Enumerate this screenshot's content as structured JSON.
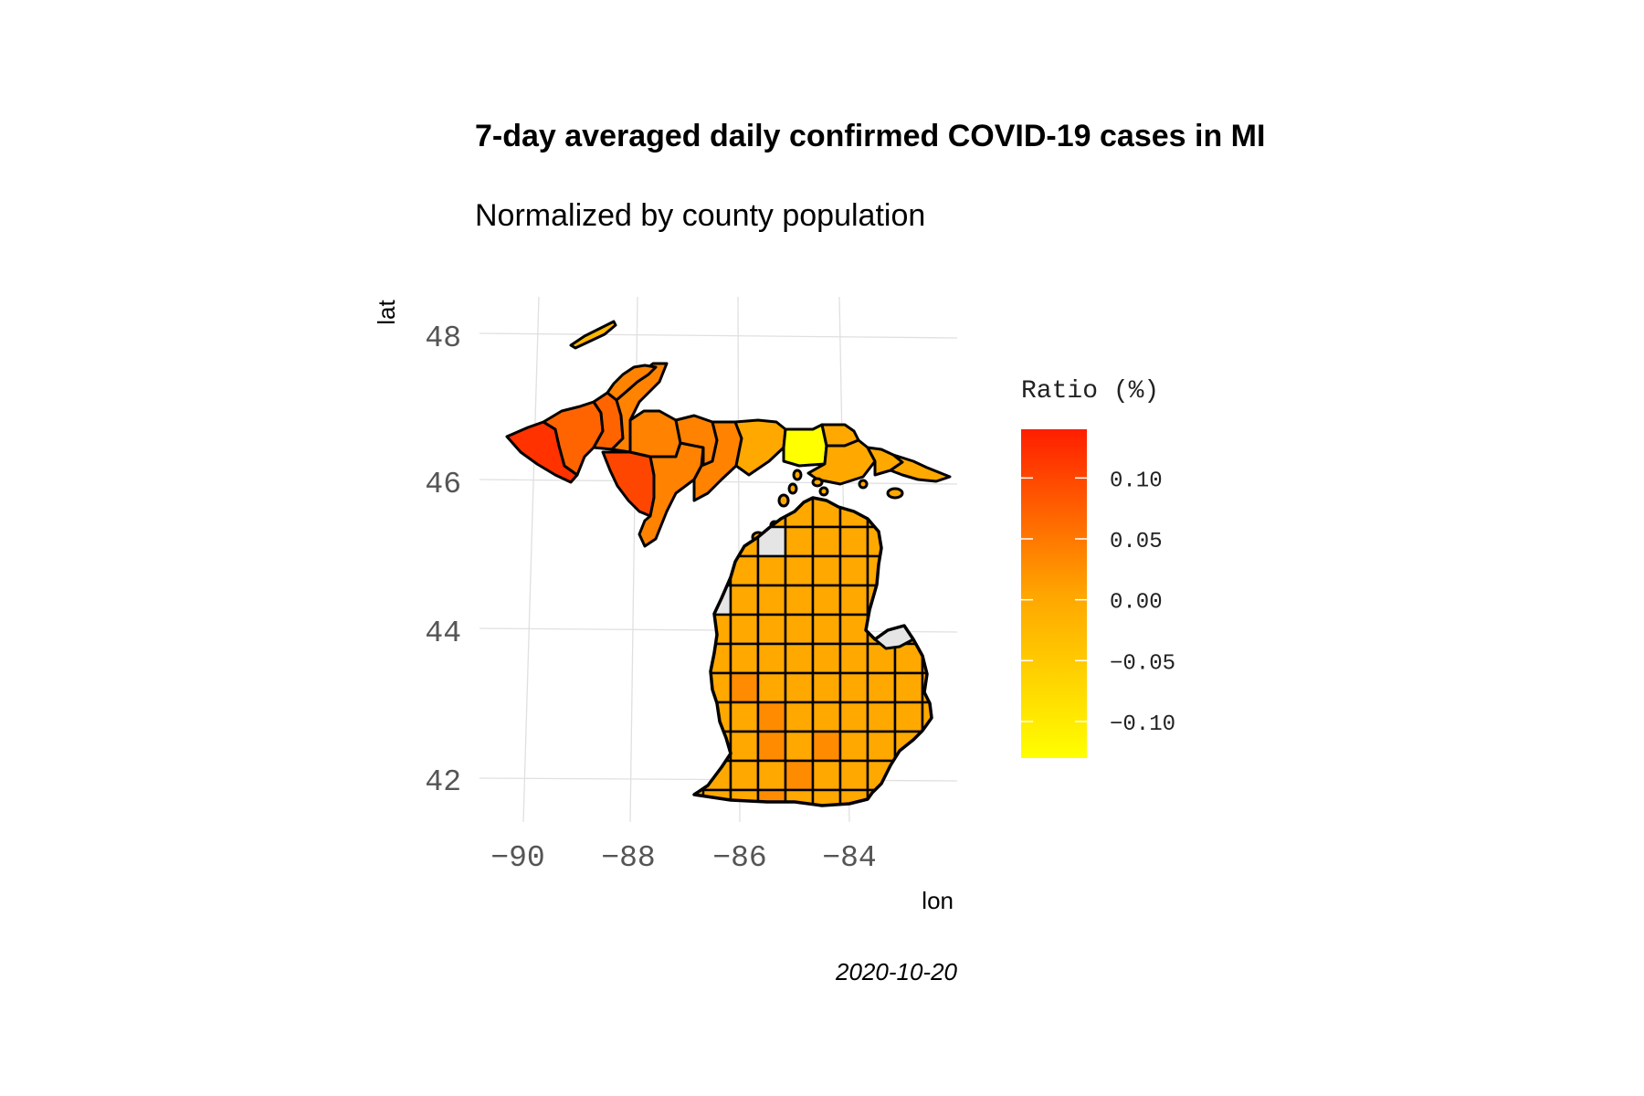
{
  "chart_data": {
    "type": "choropleth",
    "title": "7-day averaged daily confirmed COVID-19 cases in MI",
    "subtitle": "Normalized by county population",
    "xlabel": "lon",
    "ylabel": "lat",
    "caption": "2020-10-20",
    "x_ticks": [
      "−90",
      "−88",
      "−86",
      "−84"
    ],
    "x_tick_values": [
      -90,
      -88,
      -86,
      -84
    ],
    "y_ticks": [
      "42",
      "44",
      "46",
      "48"
    ],
    "y_tick_values": [
      42,
      44,
      46,
      48
    ],
    "xlim": [
      -90.7,
      -82.1
    ],
    "ylim": [
      41.3,
      48.5
    ],
    "grid": true,
    "legend": {
      "title": "Ratio (%)",
      "placement": "right",
      "labels": [
        "0.10",
        "0.05",
        "0.00",
        "−0.05",
        "−0.10"
      ],
      "values": [
        0.1,
        0.05,
        0.0,
        -0.05,
        -0.1
      ],
      "range": [
        -0.13,
        0.14
      ],
      "colors": [
        "#ffff00",
        "#ffa500",
        "#ff1e00"
      ],
      "missing_color": "#e5e5e5"
    },
    "regions": {
      "up_west_tip": 0.12,
      "up_west": 0.07,
      "menominee_area": 0.1,
      "up_central": 0.04,
      "schoolcraft": -0.13,
      "up_east": 0.0,
      "isle_royale": -0.02,
      "lower_peninsula_default": 0.0,
      "lower_peninsula_darker": 0.03,
      "missing": "NA"
    }
  }
}
